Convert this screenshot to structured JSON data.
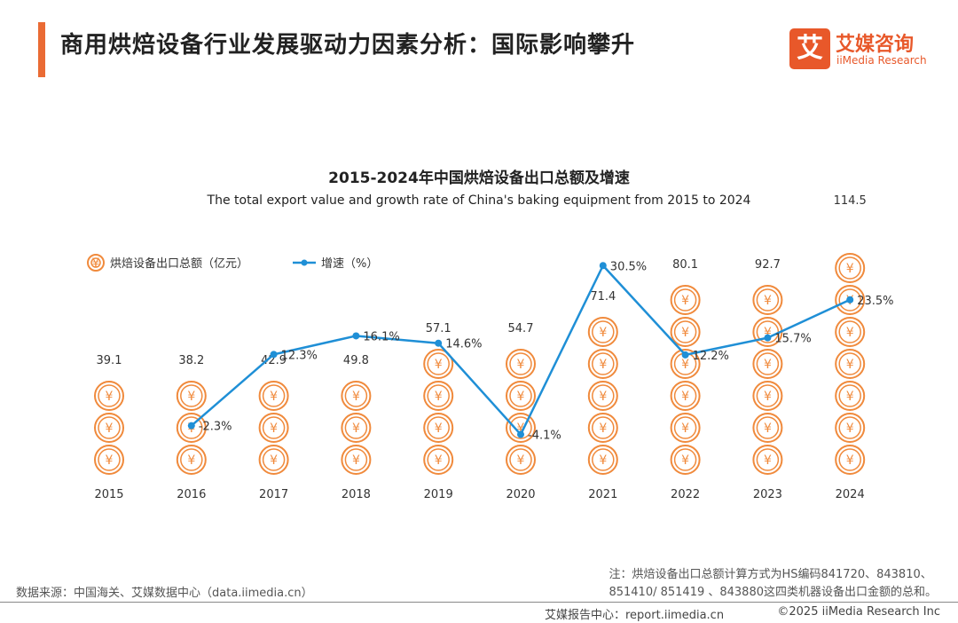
{
  "header": {
    "title": "商用烘焙设备行业发展驱动力因素分析：国际影响攀升",
    "logo_mark": "艾",
    "logo_cn": "艾媒咨询",
    "logo_en": "iiMedia Research"
  },
  "colors": {
    "accent": "#ea6b34",
    "bar_coin": "#f08a3c",
    "line": "#1f8fd6",
    "logo": "#e8582a"
  },
  "chart_data": {
    "type": "bar+line",
    "title": "2015-2024年中国烘焙设备出口总额及增速",
    "subtitle": "The total export value and growth rate of China's baking equipment from 2015 to 2024",
    "categories": [
      "2015",
      "2016",
      "2017",
      "2018",
      "2019",
      "2020",
      "2021",
      "2022",
      "2023",
      "2024"
    ],
    "series": [
      {
        "name": "烘焙设备出口总额（亿元）",
        "kind": "bar",
        "values": [
          39.1,
          38.2,
          42.9,
          49.8,
          57.1,
          54.7,
          71.4,
          80.1,
          92.7,
          114.5
        ],
        "labels": [
          "39.1",
          "38.2",
          "42.9",
          "49.8",
          "57.1",
          "54.7",
          "71.4",
          "80.1",
          "92.7",
          "114.5"
        ]
      },
      {
        "name": "增速（%）",
        "kind": "line",
        "values": [
          null,
          -2.3,
          12.3,
          16.1,
          14.6,
          -4.1,
          30.5,
          12.2,
          15.7,
          23.5
        ],
        "labels": [
          "",
          "-2.3%",
          "12.3%",
          "16.1%",
          "14.6%",
          "-4.1%",
          "30.5%",
          "12.2%",
          "15.7%",
          "23.5%"
        ]
      }
    ],
    "legend": "top-left",
    "coin_glyph": "¥"
  },
  "note_lines": [
    "注：烘焙设备出口总额计算方式为HS编码841720、843810、",
    "851410/ 851419 、843880这四类机器设备出口金额的总和。"
  ],
  "source": "数据来源：中国海关、艾媒数据中心（data.iimedia.cn）",
  "footer": {
    "report": "艾媒报告中心：report.iimedia.cn",
    "copyright": "©2025  iiMedia Research  Inc"
  }
}
